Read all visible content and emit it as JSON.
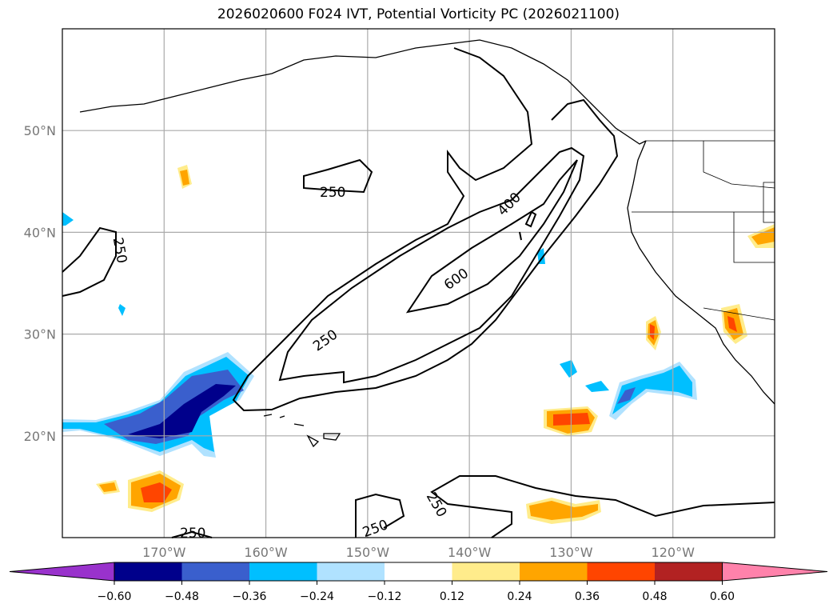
{
  "title": "2026020600 F024 IVT, Potential Vorticity PC (2026021100)",
  "map": {
    "lon_range": [
      -180,
      -110
    ],
    "lat_range": [
      10,
      60
    ],
    "lon_ticks": [
      {
        "value": -170,
        "label": "170°W"
      },
      {
        "value": -160,
        "label": "160°W"
      },
      {
        "value": -150,
        "label": "150°W"
      },
      {
        "value": -140,
        "label": "140°W"
      },
      {
        "value": -130,
        "label": "130°W"
      },
      {
        "value": -120,
        "label": "120°W"
      }
    ],
    "lat_ticks": [
      {
        "value": 50,
        "label": "50°N"
      },
      {
        "value": 40,
        "label": "40°N"
      },
      {
        "value": 30,
        "label": "30°N"
      },
      {
        "value": 20,
        "label": "20°N"
      }
    ],
    "ivt_contour_labels": [
      "250",
      "250",
      "250",
      "400",
      "600",
      "250",
      "250",
      "250"
    ]
  },
  "colorbar": {
    "levels": [
      "−0.60",
      "−0.48",
      "−0.36",
      "−0.24",
      "−0.12",
      "0.12",
      "0.24",
      "0.36",
      "0.48",
      "0.60"
    ],
    "colors": [
      "#9932CC",
      "#00008B",
      "#3A5FCD",
      "#00BFFF",
      "#B0E2FF",
      "#FFFFFF",
      "#FFEC8B",
      "#FFA500",
      "#FF4500",
      "#B22222",
      "#FF82AB"
    ]
  }
}
